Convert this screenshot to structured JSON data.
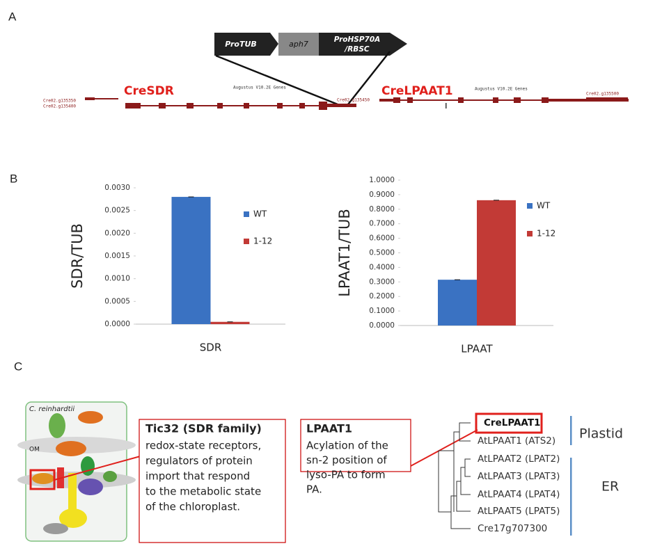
{
  "panel_labels": [
    "A",
    "B",
    "C"
  ],
  "construct": {
    "promoter": "ProTUB",
    "gene": "aph7",
    "terminator_line1": "ProHSP70A",
    "terminator_line2": "/RBSC"
  },
  "gene_map": {
    "gene1": "CreSDR",
    "gene2": "CreLPAAT1",
    "track_label_1": "Augustus V10.2E Genes",
    "track_label_2": "Augustus V10.2E Genes",
    "loci": [
      "Cre02.g135350",
      "Cre02.g135400",
      "Cre02.g135450",
      "Cre02.g135500"
    ]
  },
  "chart_data": [
    {
      "type": "bar",
      "y_label": "SDR/TUB",
      "categories": [
        "SDR"
      ],
      "series": [
        {
          "name": "WT",
          "color": "#3a72c2",
          "values": [
            0.0028
          ]
        },
        {
          "name": "1-12",
          "color": "#c23a36",
          "values": [
            5e-05
          ]
        }
      ],
      "ylim": [
        0,
        0.003
      ],
      "yticks": [
        {
          "value": 0,
          "label": "0.0000"
        },
        {
          "value": 0.0005,
          "label": "0.0005"
        },
        {
          "value": 0.001,
          "label": "0.0010"
        },
        {
          "value": 0.0015,
          "label": "0.0015"
        },
        {
          "value": 0.002,
          "label": "0.0020"
        },
        {
          "value": 0.0025,
          "label": "0.0025"
        },
        {
          "value": 0.003,
          "label": "0.0030"
        }
      ]
    },
    {
      "type": "bar",
      "y_label": "LPAAT1/TUB",
      "categories": [
        "LPAAT"
      ],
      "series": [
        {
          "name": "WT",
          "color": "#3a72c2",
          "values": [
            0.315
          ]
        },
        {
          "name": "1-12",
          "color": "#c23a36",
          "values": [
            0.862
          ]
        }
      ],
      "ylim": [
        0,
        1
      ],
      "yticks": [
        {
          "value": 0,
          "label": "0.0000"
        },
        {
          "value": 0.1,
          "label": "0.1000"
        },
        {
          "value": 0.2,
          "label": "0.2000"
        },
        {
          "value": 0.3,
          "label": "0.3000"
        },
        {
          "value": 0.4,
          "label": "0.4000"
        },
        {
          "value": 0.5,
          "label": "0.5000"
        },
        {
          "value": 0.6,
          "label": "0.6000"
        },
        {
          "value": 0.7,
          "label": "0.7000"
        },
        {
          "value": 0.8,
          "label": "0.8000"
        },
        {
          "value": 0.9,
          "label": "0.9000"
        },
        {
          "value": 1,
          "label": "1.0000"
        }
      ]
    }
  ],
  "panel_c": {
    "image_labels": [
      "C. reinhardtii",
      "OM"
    ],
    "tic32_box": {
      "title": "Tic32 (SDR family)",
      "lines": [
        "redox-state receptors,",
        "regulators of protein",
        "import that respond",
        "to the metabolic state",
        "of the chloroplast."
      ]
    },
    "lpaat1_box": {
      "title": "LPAAT1",
      "lines": [
        "Acylation of the",
        "sn-2 position of",
        "lyso-PA to form",
        "PA."
      ]
    },
    "tree_leaves": [
      "CreLPAAT1",
      "AtLPAAT1 (ATS2)",
      "AtLPAAT2 (LPAT2)",
      "AtLPAAT3 (LPAT3)",
      "AtLPAAT4 (LPAT4)",
      "AtLPAAT5 (LPAT5)",
      "Cre17g707300"
    ],
    "groups": [
      "Plastid",
      "ER"
    ]
  }
}
